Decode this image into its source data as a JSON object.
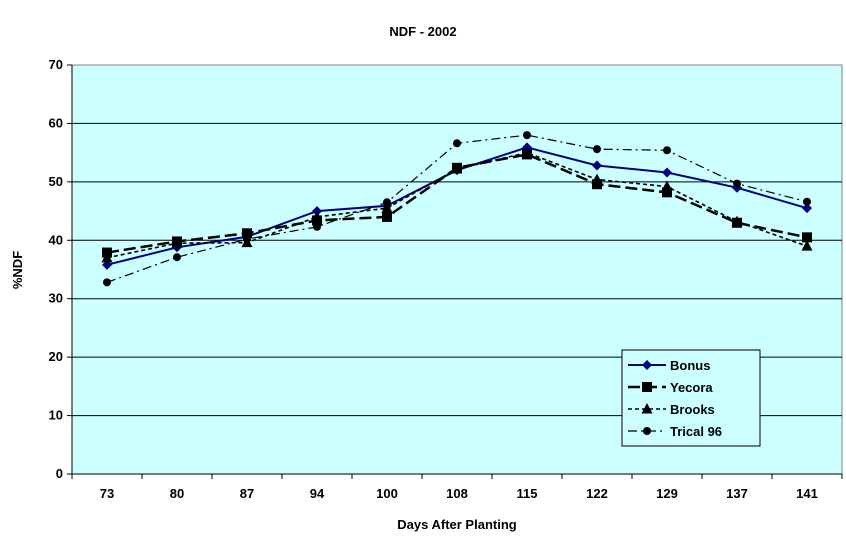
{
  "chart_data": {
    "type": "line",
    "title": "NDF - 2002",
    "xlabel": "Days After Planting",
    "ylabel": "%NDF",
    "categories": [
      "73",
      "80",
      "87",
      "94",
      "100",
      "108",
      "115",
      "122",
      "129",
      "137",
      "141"
    ],
    "ylim": [
      0,
      70
    ],
    "yticks": [
      0,
      10,
      20,
      30,
      40,
      50,
      60,
      70
    ],
    "grid": {
      "horizontal": true,
      "vertical": false
    },
    "legend_position": "bottom-right",
    "plot_background": "#ccffff",
    "series": [
      {
        "name": "Bonus",
        "color": "#000080",
        "marker": "diamond",
        "dash": "solid",
        "values": [
          35.8,
          38.8,
          40.6,
          45.0,
          45.9,
          52.0,
          55.9,
          52.8,
          51.6,
          49.0,
          45.5
        ]
      },
      {
        "name": "Yecora",
        "color": "#000000",
        "marker": "square",
        "dash": "long-dash",
        "values": [
          37.9,
          39.8,
          41.2,
          43.4,
          44.0,
          52.4,
          54.7,
          49.6,
          48.2,
          43.0,
          40.5
        ]
      },
      {
        "name": "Brooks",
        "color": "#000000",
        "marker": "triangle",
        "dash": "short-dash",
        "values": [
          37.0,
          39.5,
          39.6,
          44.0,
          45.5,
          52.2,
          55.0,
          50.4,
          49.2,
          43.2,
          39.0
        ]
      },
      {
        "name": "Trical 96",
        "color": "#000000",
        "marker": "circle",
        "dash": "dash-dot",
        "values": [
          32.8,
          37.1,
          40.2,
          42.3,
          46.5,
          56.6,
          58.0,
          55.6,
          55.4,
          49.7,
          46.6
        ]
      }
    ]
  }
}
